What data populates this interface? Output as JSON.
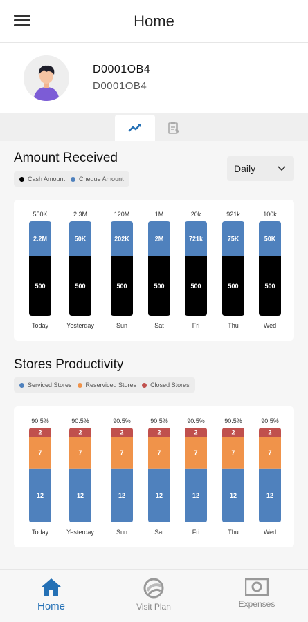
{
  "header": {
    "title": "Home",
    "menu_icon": "hamburger-menu-icon"
  },
  "profile": {
    "name": "D0001OB4",
    "id": "D0001OB4",
    "avatar_icon": "user-avatar-icon"
  },
  "tabs": [
    {
      "icon": "trending-up-icon",
      "active": true
    },
    {
      "icon": "report-clipboard-icon",
      "active": false
    }
  ],
  "amount_received": {
    "title": "Amount Received",
    "legend": [
      {
        "label": "Cash Amount",
        "color": "#000000"
      },
      {
        "label": "Cheque Amount",
        "color": "#4f81bd"
      }
    ],
    "dropdown": {
      "value": "Daily"
    }
  },
  "stores_productivity": {
    "title": "Stores Productivity",
    "legend": [
      {
        "label": "Serviced Stores",
        "color": "#4f81bd"
      },
      {
        "label": "Reserviced Stores",
        "color": "#f0934a"
      },
      {
        "label": "Closed Stores",
        "color": "#c0504d"
      }
    ]
  },
  "chart_data": [
    {
      "type": "bar",
      "categories": [
        "Today",
        "Yesterday",
        "Sun",
        "Sat",
        "Fri",
        "Thu",
        "Wed"
      ],
      "totals": [
        "550K",
        "2.3M",
        "120M",
        "1M",
        "20k",
        "921k",
        "100k"
      ],
      "series": [
        {
          "name": "Cash Amount",
          "color": "#000000",
          "labels": [
            "500",
            "500",
            "500",
            "500",
            "500",
            "500",
            "500"
          ],
          "share": [
            0.63,
            0.63,
            0.63,
            0.63,
            0.63,
            0.63,
            0.63
          ]
        },
        {
          "name": "Cheque Amount",
          "color": "#4f81bd",
          "labels": [
            "2.2M",
            "50K",
            "202K",
            "2M",
            "721k",
            "75K",
            "50K"
          ],
          "share": [
            0.37,
            0.37,
            0.37,
            0.37,
            0.37,
            0.37,
            0.37
          ]
        }
      ]
    },
    {
      "type": "bar",
      "categories": [
        "Today",
        "Yesterday",
        "Sun",
        "Sat",
        "Fri",
        "Thu",
        "Wed"
      ],
      "totals": [
        "90.5%",
        "90.5%",
        "90.5%",
        "90.5%",
        "90.5%",
        "90.5%",
        "90.5%"
      ],
      "series": [
        {
          "name": "Serviced Stores",
          "color": "#4f81bd",
          "values": [
            12,
            12,
            12,
            12,
            12,
            12,
            12
          ]
        },
        {
          "name": "Reserviced Stores",
          "color": "#f0934a",
          "values": [
            7,
            7,
            7,
            7,
            7,
            7,
            7
          ]
        },
        {
          "name": "Closed Stores",
          "color": "#c0504d",
          "values": [
            2,
            2,
            2,
            2,
            2,
            2,
            2
          ]
        }
      ]
    }
  ],
  "bottom_nav": [
    {
      "label": "Home",
      "icon": "home-icon",
      "active": true
    },
    {
      "label": "Visit Plan",
      "icon": "visit-plan-icon",
      "active": false
    },
    {
      "label": "Expenses",
      "icon": "expenses-camera-icon",
      "active": false
    }
  ]
}
